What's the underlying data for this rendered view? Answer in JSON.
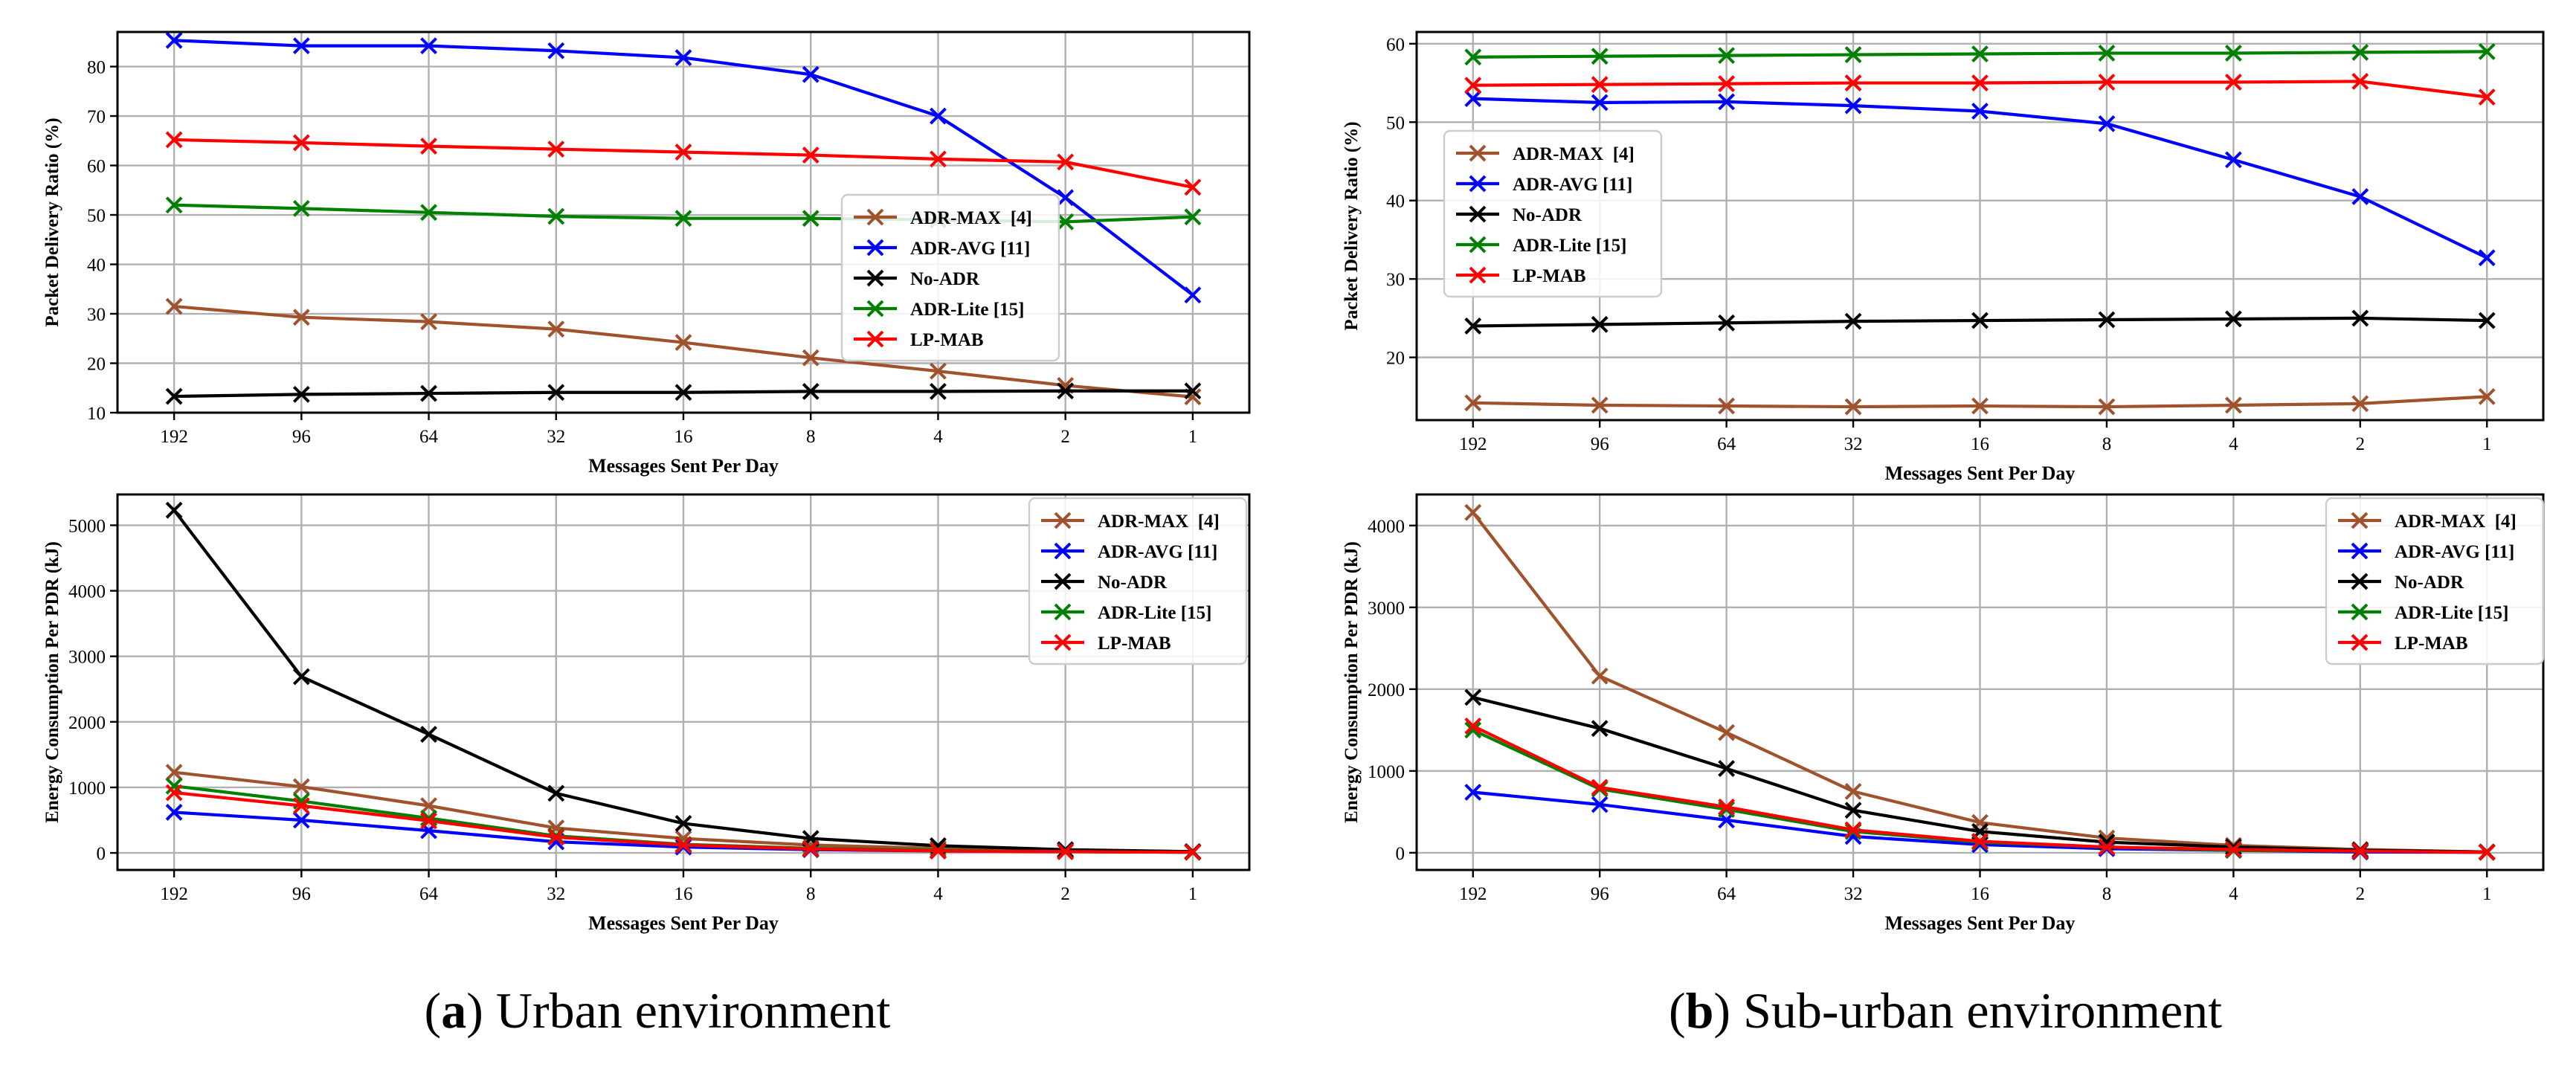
{
  "captions": {
    "a_letter": "a",
    "a_text": " Urban environment",
    "b_letter": "b",
    "b_text": " Sub-urban environment"
  },
  "colors": {
    "ADR-MAX": "#a0522d",
    "ADR-AVG": "#0000ff",
    "No-ADR": "#000000",
    "ADR-Lite": "#008000",
    "LP-MAB": "#ff0000"
  },
  "chart_data": [
    {
      "id": "urban-pdr",
      "type": "line",
      "title": "",
      "xlabel": "Messages Sent Per Day",
      "ylabel": "Packet Delivery Ratio (%)",
      "categories": [
        "192",
        "96",
        "64",
        "32",
        "16",
        "8",
        "4",
        "2",
        "1"
      ],
      "ylim": [
        10,
        87
      ],
      "yticks": [
        10,
        20,
        30,
        40,
        50,
        60,
        70,
        80
      ],
      "grid": true,
      "legend": "center-right",
      "series": [
        {
          "name": "ADR-MAX  [4]",
          "key": "ADR-MAX",
          "values": [
            31.5,
            29.3,
            28.4,
            26.9,
            24.2,
            21.1,
            18.4,
            15.5,
            13.2
          ]
        },
        {
          "name": "ADR-AVG [11]",
          "key": "ADR-AVG",
          "values": [
            85.3,
            84.2,
            84.2,
            83.2,
            81.8,
            78.4,
            70.0,
            53.5,
            33.8
          ]
        },
        {
          "name": "No-ADR",
          "key": "No-ADR",
          "values": [
            13.3,
            13.7,
            13.9,
            14.1,
            14.1,
            14.3,
            14.3,
            14.4,
            14.4
          ]
        },
        {
          "name": "ADR-Lite [15]",
          "key": "ADR-Lite",
          "values": [
            52.0,
            51.3,
            50.5,
            49.7,
            49.3,
            49.3,
            49.0,
            48.6,
            49.6
          ]
        },
        {
          "name": "LP-MAB",
          "key": "LP-MAB",
          "values": [
            65.2,
            64.6,
            63.9,
            63.3,
            62.7,
            62.1,
            61.3,
            60.7,
            55.6
          ]
        }
      ]
    },
    {
      "id": "suburban-pdr",
      "type": "line",
      "title": "",
      "xlabel": "Messages Sent Per Day",
      "ylabel": "Packet Delivery Ratio (%)",
      "categories": [
        "192",
        "96",
        "64",
        "32",
        "16",
        "8",
        "4",
        "2",
        "1"
      ],
      "ylim": [
        12,
        61.5
      ],
      "yticks": [
        20,
        30,
        40,
        50,
        60
      ],
      "grid": true,
      "legend": "center-left",
      "series": [
        {
          "name": "ADR-MAX  [4]",
          "key": "ADR-MAX",
          "values": [
            14.2,
            13.9,
            13.8,
            13.7,
            13.8,
            13.7,
            13.9,
            14.1,
            15.0
          ]
        },
        {
          "name": "ADR-AVG [11]",
          "key": "ADR-AVG",
          "values": [
            53.0,
            52.5,
            52.6,
            52.1,
            51.4,
            49.8,
            45.2,
            40.5,
            32.7
          ]
        },
        {
          "name": "No-ADR",
          "key": "No-ADR",
          "values": [
            24.0,
            24.2,
            24.4,
            24.6,
            24.7,
            24.8,
            24.9,
            25.0,
            24.7
          ]
        },
        {
          "name": "ADR-Lite [15]",
          "key": "ADR-Lite",
          "values": [
            58.3,
            58.4,
            58.5,
            58.6,
            58.7,
            58.8,
            58.8,
            58.9,
            59.0
          ]
        },
        {
          "name": "LP-MAB",
          "key": "LP-MAB",
          "values": [
            54.7,
            54.8,
            54.9,
            55.0,
            55.0,
            55.1,
            55.1,
            55.2,
            53.2
          ]
        }
      ]
    },
    {
      "id": "urban-energy",
      "type": "line",
      "title": "",
      "xlabel": "Messages Sent Per Day",
      "ylabel": "Energy Consumption Per PDR (kJ)",
      "categories": [
        "192",
        "96",
        "64",
        "32",
        "16",
        "8",
        "4",
        "2",
        "1"
      ],
      "ylim": [
        -260,
        5470
      ],
      "yticks": [
        0,
        1000,
        2000,
        3000,
        4000,
        5000
      ],
      "grid": true,
      "legend": "upper-right",
      "series": [
        {
          "name": "ADR-MAX  [4]",
          "key": "ADR-MAX",
          "values": [
            1230,
            1010,
            720,
            380,
            220,
            120,
            70,
            40,
            20
          ]
        },
        {
          "name": "ADR-AVG [11]",
          "key": "ADR-AVG",
          "values": [
            620,
            500,
            340,
            170,
            90,
            50,
            30,
            20,
            10
          ]
        },
        {
          "name": "No-ADR",
          "key": "No-ADR",
          "values": [
            5230,
            2690,
            1810,
            910,
            450,
            220,
            110,
            50,
            20
          ]
        },
        {
          "name": "ADR-Lite [15]",
          "key": "ADR-Lite",
          "values": [
            1020,
            790,
            530,
            260,
            130,
            70,
            40,
            20,
            10
          ]
        },
        {
          "name": "LP-MAB",
          "key": "LP-MAB",
          "values": [
            920,
            720,
            490,
            240,
            120,
            60,
            30,
            20,
            10
          ]
        }
      ]
    },
    {
      "id": "suburban-energy",
      "type": "line",
      "title": "",
      "xlabel": "Messages Sent Per Day",
      "ylabel": "Energy Consumption Per PDR (kJ)",
      "categories": [
        "192",
        "96",
        "64",
        "32",
        "16",
        "8",
        "4",
        "2",
        "1"
      ],
      "ylim": [
        -210,
        4380
      ],
      "yticks": [
        0,
        1000,
        2000,
        3000,
        4000
      ],
      "grid": true,
      "legend": "upper-right",
      "series": [
        {
          "name": "ADR-MAX  [4]",
          "key": "ADR-MAX",
          "values": [
            4160,
            2160,
            1470,
            750,
            370,
            180,
            90,
            40,
            10
          ]
        },
        {
          "name": "ADR-AVG [11]",
          "key": "ADR-AVG",
          "values": [
            740,
            590,
            400,
            200,
            100,
            50,
            30,
            10,
            5
          ]
        },
        {
          "name": "No-ADR",
          "key": "No-ADR",
          "values": [
            1900,
            1520,
            1030,
            520,
            260,
            130,
            70,
            30,
            10
          ]
        },
        {
          "name": "ADR-Lite [15]",
          "key": "ADR-Lite",
          "values": [
            1500,
            780,
            530,
            260,
            130,
            70,
            30,
            20,
            5
          ]
        },
        {
          "name": "LP-MAB",
          "key": "LP-MAB",
          "values": [
            1550,
            800,
            560,
            280,
            140,
            70,
            40,
            20,
            5
          ]
        }
      ]
    }
  ]
}
